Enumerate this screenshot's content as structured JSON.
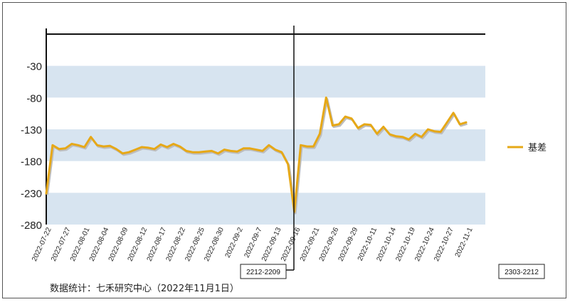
{
  "chart_data": {
    "type": "line",
    "title": "",
    "xlabel": "",
    "ylabel": "",
    "ylim": [
      -280,
      20
    ],
    "yticks": [
      -30,
      -80,
      -130,
      -180,
      -230,
      -280
    ],
    "xticks": [
      "2022-07-22",
      "2022-07-27",
      "2022-08-01",
      "2022-08-04",
      "2022-08-09",
      "2022-08-12",
      "2022-08-17",
      "2022-08-22",
      "2022-08-25",
      "2022-08-30",
      "2022-09-2",
      "2022-09-7",
      "2022-09-13",
      "2022-09-16",
      "2022-09-21",
      "2022-09-26",
      "2022-09-29",
      "2022-10-11",
      "2022-10-14",
      "2022-10-19",
      "2022-10-24",
      "2022-10-27",
      "2022-11-1"
    ],
    "legend_position": "right",
    "series": [
      {
        "name": "基差",
        "color": "#e6a817",
        "values": [
          -231,
          -155,
          -161,
          -160,
          -153,
          -155,
          -158,
          -142,
          -155,
          -157,
          -156,
          -161,
          -168,
          -166,
          -162,
          -158,
          -159,
          -161,
          -154,
          -158,
          -153,
          -157,
          -164,
          -166,
          -166,
          -165,
          -164,
          -168,
          -162,
          -164,
          -165,
          -160,
          -160,
          -162,
          -164,
          -155,
          -162,
          -166,
          -185,
          -260,
          -155,
          -157,
          -157,
          -137,
          -80,
          -124,
          -122,
          -110,
          -113,
          -128,
          -122,
          -123,
          -137,
          -126,
          -138,
          -141,
          -142,
          -146,
          -137,
          -142,
          -130,
          -133,
          -134,
          -119,
          -104,
          -122,
          -119
        ]
      }
    ],
    "annotations": [
      {
        "label": "2212-2209"
      },
      {
        "label": "2303-2212"
      }
    ]
  },
  "footer": {
    "text": "数据统计：七禾研究中心（2022年11月1日）"
  }
}
